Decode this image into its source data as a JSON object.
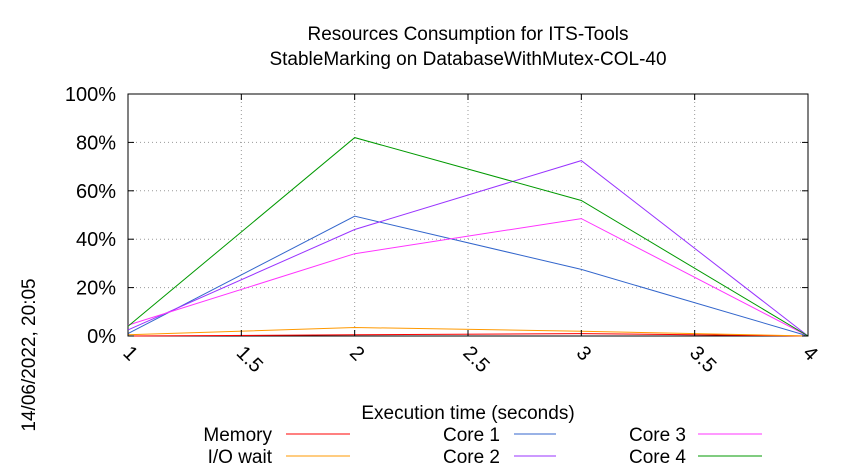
{
  "chart_data": {
    "type": "line",
    "title_line1": "Resources Consumption for ITS-Tools",
    "title_line2": "StableMarking on DatabaseWithMutex-COL-40",
    "xlabel": "Execution time (seconds)",
    "ylabel": "",
    "side_label": "14/06/2022, 20:05",
    "xlim": [
      1,
      4
    ],
    "ylim": [
      0,
      100
    ],
    "x_ticks": [
      1,
      1.5,
      2,
      2.5,
      3,
      3.5,
      4
    ],
    "x_tick_labels": [
      "1",
      "1.5",
      "2",
      "2.5",
      "3",
      "3.5",
      "4"
    ],
    "y_ticks": [
      0,
      20,
      40,
      60,
      80,
      100
    ],
    "y_tick_labels": [
      "0%",
      "20%",
      "40%",
      "60%",
      "80%",
      "100%"
    ],
    "grid": true,
    "legend_position": "bottom",
    "x": [
      1,
      2,
      3,
      4
    ],
    "series": [
      {
        "name": "Memory",
        "color": "#ff0000",
        "values": [
          0,
          0.5,
          1,
          0
        ]
      },
      {
        "name": "I/O wait",
        "color": "#ff9900",
        "values": [
          0.5,
          3.5,
          2,
          0
        ]
      },
      {
        "name": "Core 1",
        "color": "#3366cc",
        "values": [
          1,
          49.5,
          27.5,
          0
        ]
      },
      {
        "name": "Core 2",
        "color": "#9933ff",
        "values": [
          2.5,
          44,
          72.5,
          0
        ]
      },
      {
        "name": "Core 3",
        "color": "#ff33ff",
        "values": [
          4.5,
          34,
          48.5,
          0
        ]
      },
      {
        "name": "Core 4",
        "color": "#009900",
        "values": [
          4,
          82,
          56,
          0
        ]
      }
    ]
  }
}
